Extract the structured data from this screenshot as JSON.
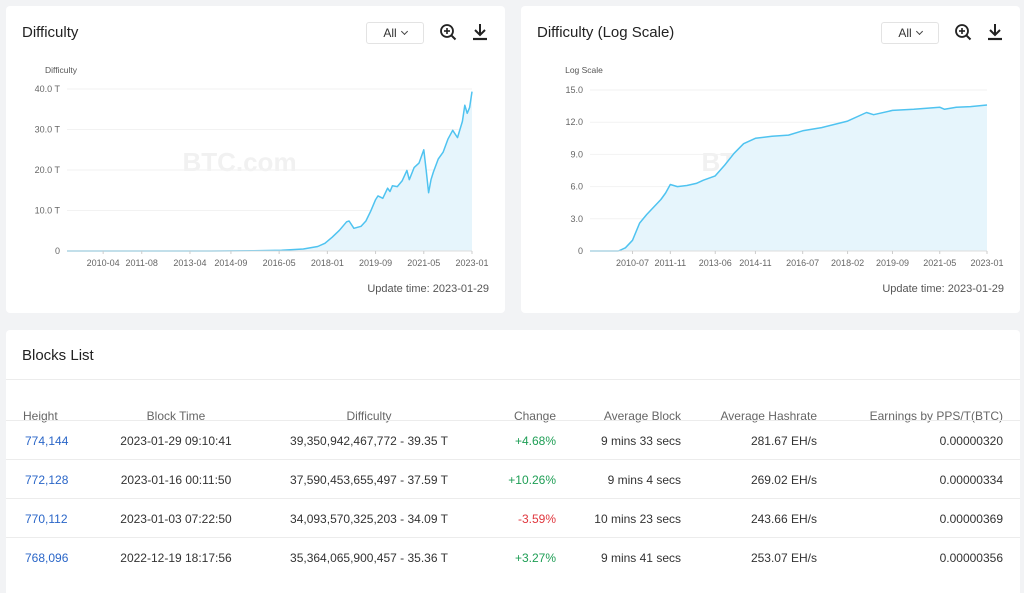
{
  "cards": {
    "difficulty": {
      "title": "Difficulty",
      "range_label": "All",
      "update_time": "Update time: 2023-01-29",
      "watermark": "BTC.com",
      "y_axis_title": "Difficulty"
    },
    "difficulty_log": {
      "title": "Difficulty (Log Scale)",
      "range_label": "All",
      "update_time": "Update time: 2023-01-29",
      "watermark": "BTC.com",
      "y_axis_title": "Log Scale"
    }
  },
  "chart_data": [
    {
      "type": "area",
      "title": "Difficulty",
      "ylabel": "Difficulty",
      "color": "#4fc3f0",
      "fill": "#e6f5fc",
      "ylim": [
        0,
        40
      ],
      "y_ticks": [
        "0",
        "10.0 T",
        "20.0 T",
        "30.0 T",
        "40.0 T"
      ],
      "x_ticks": [
        "2010-04",
        "2011-08",
        "2013-04",
        "2014-09",
        "2016-05",
        "2018-01",
        "2019-09",
        "2021-05",
        "2023-01"
      ],
      "x_range": [
        "2009-01",
        "2023-01"
      ],
      "points": [
        [
          "2009-01",
          0
        ],
        [
          "2012-01",
          0
        ],
        [
          "2014-01",
          0.01
        ],
        [
          "2015-06",
          0.05
        ],
        [
          "2016-06",
          0.2
        ],
        [
          "2017-03",
          0.5
        ],
        [
          "2017-09",
          1.1
        ],
        [
          "2017-12",
          1.9
        ],
        [
          "2018-03",
          3.4
        ],
        [
          "2018-06",
          5.1
        ],
        [
          "2018-09",
          7.2
        ],
        [
          "2018-10",
          7.4
        ],
        [
          "2018-12",
          5.6
        ],
        [
          "2019-03",
          6.1
        ],
        [
          "2019-05",
          7.4
        ],
        [
          "2019-07",
          9.9
        ],
        [
          "2019-09",
          12.7
        ],
        [
          "2019-10",
          13.6
        ],
        [
          "2019-12",
          13.0
        ],
        [
          "2020-02",
          15.5
        ],
        [
          "2020-03",
          14.7
        ],
        [
          "2020-04",
          16.1
        ],
        [
          "2020-06",
          15.9
        ],
        [
          "2020-08",
          17.3
        ],
        [
          "2020-10",
          19.9
        ],
        [
          "2020-11",
          17.6
        ],
        [
          "2021-01",
          20.6
        ],
        [
          "2021-03",
          21.7
        ],
        [
          "2021-05",
          25.0
        ],
        [
          "2021-06",
          19.9
        ],
        [
          "2021-07",
          14.4
        ],
        [
          "2021-08",
          17.6
        ],
        [
          "2021-09",
          19.5
        ],
        [
          "2021-11",
          22.7
        ],
        [
          "2022-01",
          24.4
        ],
        [
          "2022-03",
          27.6
        ],
        [
          "2022-05",
          29.8
        ],
        [
          "2022-07",
          28.0
        ],
        [
          "2022-09",
          32.0
        ],
        [
          "2022-10",
          36.0
        ],
        [
          "2022-11",
          34.0
        ],
        [
          "2022-12",
          35.4
        ],
        [
          "2023-01",
          39.35
        ]
      ]
    },
    {
      "type": "area",
      "title": "Difficulty (Log Scale)",
      "ylabel": "Log Scale",
      "color": "#4fc3f0",
      "fill": "#e6f5fc",
      "ylim": [
        0,
        15
      ],
      "y_ticks": [
        "0",
        "3.0",
        "6.0",
        "9.0",
        "12.0",
        "15.0"
      ],
      "x_ticks": [
        "2010-07",
        "2011-11",
        "2013-06",
        "2014-11",
        "2016-07",
        "2018-02",
        "2019-09",
        "2021-05",
        "2023-01"
      ],
      "x_range": [
        "2009-01",
        "2023-01"
      ],
      "points": [
        [
          "2009-01",
          0
        ],
        [
          "2010-01",
          0
        ],
        [
          "2010-04",
          0.3
        ],
        [
          "2010-07",
          1.0
        ],
        [
          "2010-10",
          2.6
        ],
        [
          "2011-01",
          3.4
        ],
        [
          "2011-04",
          4.1
        ],
        [
          "2011-07",
          4.8
        ],
        [
          "2011-09",
          5.4
        ],
        [
          "2011-11",
          6.2
        ],
        [
          "2012-02",
          6.0
        ],
        [
          "2012-06",
          6.1
        ],
        [
          "2012-10",
          6.3
        ],
        [
          "2013-01",
          6.6
        ],
        [
          "2013-06",
          7.0
        ],
        [
          "2013-10",
          8.0
        ],
        [
          "2014-02",
          9.1
        ],
        [
          "2014-06",
          10.0
        ],
        [
          "2014-11",
          10.5
        ],
        [
          "2015-06",
          10.7
        ],
        [
          "2016-01",
          10.8
        ],
        [
          "2016-07",
          11.2
        ],
        [
          "2017-03",
          11.5
        ],
        [
          "2018-02",
          12.1
        ],
        [
          "2018-10",
          12.9
        ],
        [
          "2019-01",
          12.7
        ],
        [
          "2019-09",
          13.1
        ],
        [
          "2020-06",
          13.2
        ],
        [
          "2021-05",
          13.4
        ],
        [
          "2021-07",
          13.2
        ],
        [
          "2021-12",
          13.4
        ],
        [
          "2022-06",
          13.45
        ],
        [
          "2023-01",
          13.6
        ]
      ]
    }
  ],
  "blocks": {
    "title": "Blocks List",
    "headers": {
      "height": "Height",
      "block_time": "Block Time",
      "difficulty": "Difficulty",
      "change": "Change",
      "average_block": "Average Block",
      "average_hashrate": "Average Hashrate",
      "earnings": "Earnings by PPS/T(BTC)"
    },
    "rows": [
      {
        "height": "774,144",
        "block_time": "2023-01-29 09:10:41",
        "difficulty": "39,350,942,467,772 - 39.35 T",
        "change": "+4.68%",
        "change_sign": "positive",
        "average_block": "9 mins 33 secs",
        "average_hashrate": "281.67 EH/s",
        "earnings": "0.00000320"
      },
      {
        "height": "772,128",
        "block_time": "2023-01-16 00:11:50",
        "difficulty": "37,590,453,655,497 - 37.59 T",
        "change": "+10.26%",
        "change_sign": "positive",
        "average_block": "9 mins 4 secs",
        "average_hashrate": "269.02 EH/s",
        "earnings": "0.00000334"
      },
      {
        "height": "770,112",
        "block_time": "2023-01-03 07:22:50",
        "difficulty": "34,093,570,325,203 - 34.09 T",
        "change": "-3.59%",
        "change_sign": "negative",
        "average_block": "10 mins 23 secs",
        "average_hashrate": "243.66 EH/s",
        "earnings": "0.00000369"
      },
      {
        "height": "768,096",
        "block_time": "2022-12-19 18:17:56",
        "difficulty": "35,364,065,900,457 - 35.36 T",
        "change": "+3.27%",
        "change_sign": "positive",
        "average_block": "9 mins 41 secs",
        "average_hashrate": "253.07 EH/s",
        "earnings": "0.00000356"
      }
    ]
  },
  "colors": {
    "link": "#2a66c8",
    "positive": "#1e9e55",
    "negative": "#e0373e",
    "accent": "#4fc3f0"
  }
}
